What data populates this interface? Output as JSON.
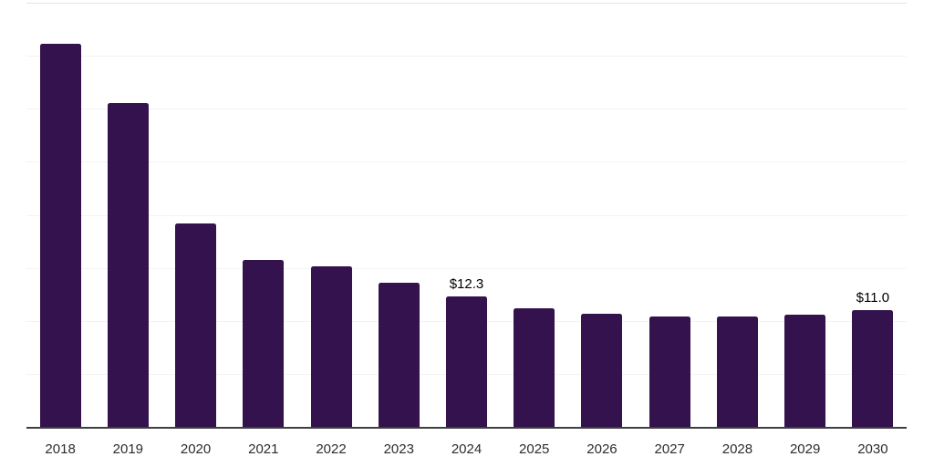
{
  "chart_data": {
    "type": "bar",
    "title": "",
    "xlabel": "",
    "ylabel": "",
    "categories": [
      "2018",
      "2019",
      "2020",
      "2021",
      "2022",
      "2023",
      "2024",
      "2025",
      "2026",
      "2027",
      "2028",
      "2029",
      "2030"
    ],
    "values": [
      36.1,
      30.5,
      19.2,
      15.7,
      15.1,
      13.6,
      12.3,
      11.2,
      10.7,
      10.4,
      10.4,
      10.6,
      11.0
    ],
    "data_labels": {
      "2024": "$12.3",
      "2030": "$11.0"
    },
    "ylim": [
      0,
      40
    ],
    "gridline_step": 5,
    "grid": "horizontal-only",
    "legend": "none",
    "colors": {
      "bar": "#34124d",
      "gridline": "#f3f3f3",
      "plot_top_border": "#e4e4e4",
      "axis_line": "#3f3f3f",
      "tick_label": "#2c2c2c",
      "value_label": "#000000",
      "background": "#ffffff"
    }
  }
}
